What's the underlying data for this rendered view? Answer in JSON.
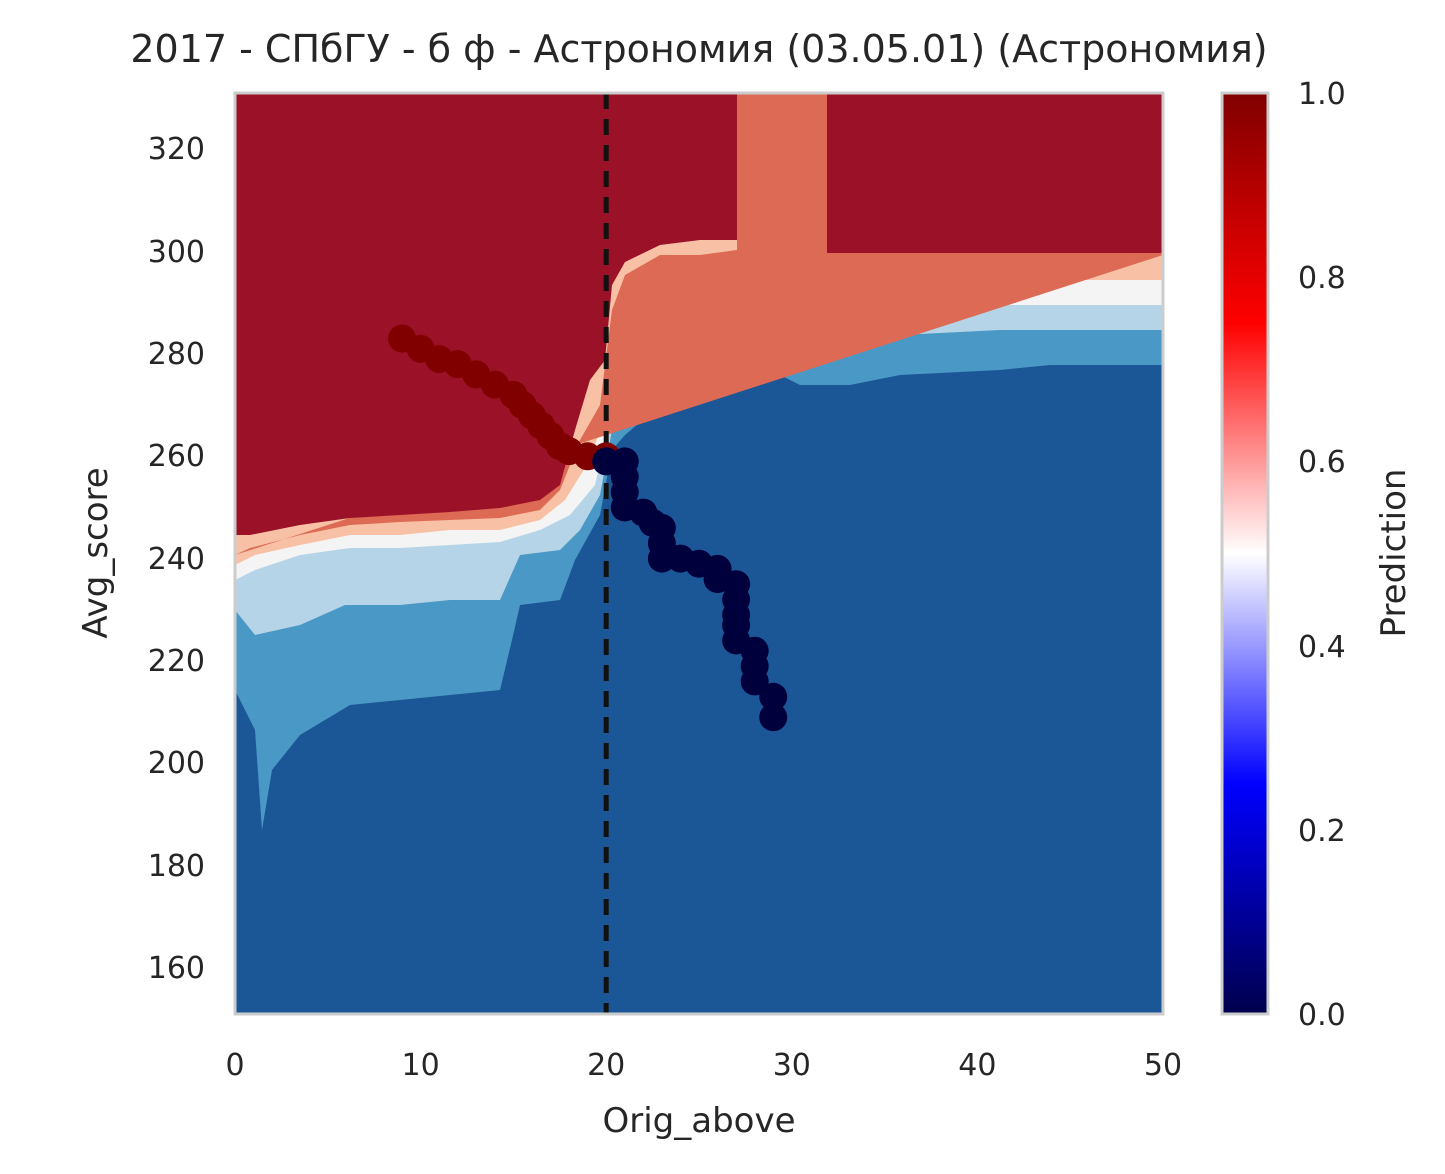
{
  "chart_data": {
    "type": "heatmap",
    "title": "2017 - СПбГУ - б ф - Астрономия (03.05.01) (Астрономия)",
    "xlabel": "Orig_above",
    "ylabel": "Avg_score",
    "xlim": [
      0,
      50
    ],
    "ylim": [
      150,
      330
    ],
    "x_ticks": [
      "0",
      "10",
      "20",
      "30",
      "40",
      "50"
    ],
    "y_ticks": [
      "160",
      "180",
      "200",
      "220",
      "240",
      "260",
      "280",
      "300",
      "320"
    ],
    "grid": false,
    "colorbar": {
      "label": "Prediction",
      "range": [
        0,
        1
      ],
      "ticks": [
        "0.0",
        "0.2",
        "0.4",
        "0.6",
        "0.8",
        "1.0"
      ],
      "colormap": "seismic"
    },
    "contour_levels": [
      {
        "level": 0.125,
        "color": "#1b5796"
      },
      {
        "level": 0.25,
        "color": "#4a98c5"
      },
      {
        "level": 0.375,
        "color": "#b6d4e7"
      },
      {
        "level": 0.5,
        "color": "#f4f4f4"
      },
      {
        "level": 0.625,
        "color": "#f8c1a6"
      },
      {
        "level": 0.75,
        "color": "#dc6a55"
      },
      {
        "level": 0.875,
        "color": "#9b1127"
      }
    ],
    "reference_line": {
      "x": 20,
      "style": "dashed",
      "color": "#111111"
    },
    "series": [
      {
        "color": "#800000",
        "points": [
          [
            9,
            282
          ],
          [
            10,
            280
          ],
          [
            11,
            278
          ],
          [
            12,
            277
          ],
          [
            13,
            275
          ],
          [
            14,
            273
          ],
          [
            15,
            271
          ],
          [
            15.5,
            269
          ],
          [
            16,
            267
          ],
          [
            16.5,
            265
          ],
          [
            17,
            263
          ],
          [
            17.5,
            261
          ],
          [
            18,
            260
          ],
          [
            19,
            259
          ],
          [
            20,
            259
          ]
        ]
      },
      {
        "color": "#00003c",
        "points": [
          [
            20,
            258
          ],
          [
            21,
            258
          ],
          [
            21,
            255
          ],
          [
            21,
            252
          ],
          [
            21,
            249
          ],
          [
            22,
            248
          ],
          [
            22.5,
            246
          ],
          [
            23,
            245
          ],
          [
            23,
            242
          ],
          [
            23,
            239
          ],
          [
            24,
            239
          ],
          [
            25,
            238
          ],
          [
            26,
            237
          ],
          [
            26,
            235
          ],
          [
            27,
            234
          ],
          [
            27,
            231
          ],
          [
            27,
            228
          ],
          [
            27,
            226
          ],
          [
            27,
            223
          ],
          [
            28,
            221
          ],
          [
            28,
            218
          ],
          [
            28,
            215
          ],
          [
            29,
            212
          ],
          [
            29,
            208
          ]
        ]
      }
    ]
  }
}
